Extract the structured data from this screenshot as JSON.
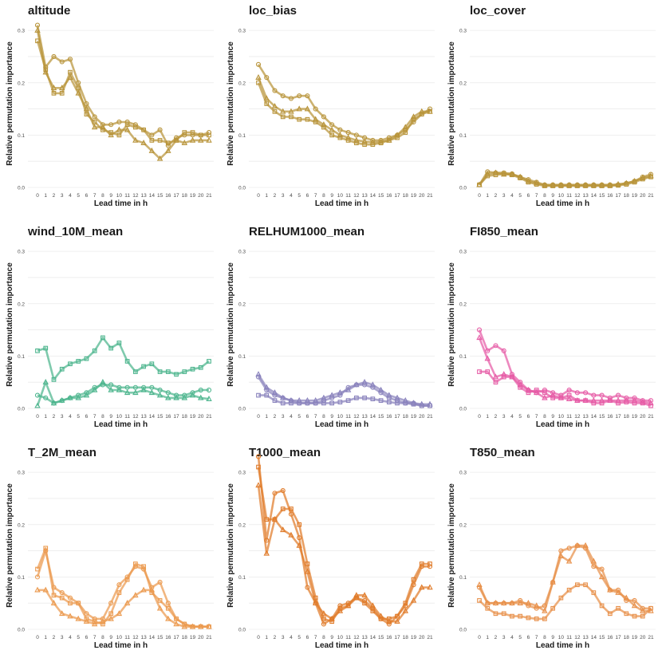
{
  "chart_data": {
    "type": "line",
    "x": [
      0,
      1,
      2,
      3,
      4,
      5,
      6,
      7,
      8,
      9,
      10,
      11,
      12,
      13,
      14,
      15,
      16,
      17,
      18,
      19,
      20,
      21
    ],
    "x_tick_labels": [
      "0",
      "1",
      "2",
      "3",
      "4",
      "5",
      "6",
      "7",
      "8",
      "9",
      "10",
      "11",
      "12",
      "13",
      "14",
      "15",
      "16",
      "17",
      "18",
      "19",
      "20",
      "21"
    ],
    "y_tick_labels": [
      "0.0",
      "0.1",
      "0.2",
      "0.3"
    ],
    "xlabel": "Lead time in h",
    "ylabel": "Relative permutation importance",
    "ylim": [
      0,
      0.32
    ],
    "grid": true,
    "series_markers": [
      "circle",
      "triangle",
      "square"
    ],
    "panels": [
      {
        "title": "altitude",
        "color": "#B8943A",
        "series": [
          {
            "marker": "circle",
            "values": [
              0.31,
              0.23,
              0.25,
              0.24,
              0.245,
              0.2,
              0.16,
              0.135,
              0.12,
              0.12,
              0.125,
              0.125,
              0.12,
              0.11,
              0.1,
              0.11,
              0.08,
              0.095,
              0.1,
              0.1,
              0.1,
              0.105
            ]
          },
          {
            "marker": "triangle",
            "values": [
              0.3,
              0.22,
              0.19,
              0.19,
              0.21,
              0.18,
              0.15,
              0.115,
              0.115,
              0.1,
              0.11,
              0.11,
              0.09,
              0.085,
              0.07,
              0.055,
              0.07,
              0.09,
              0.085,
              0.09,
              0.09,
              0.09
            ]
          },
          {
            "marker": "square",
            "values": [
              0.28,
              0.225,
              0.18,
              0.18,
              0.22,
              0.19,
              0.14,
              0.125,
              0.11,
              0.105,
              0.1,
              0.12,
              0.115,
              0.11,
              0.09,
              0.09,
              0.085,
              0.09,
              0.105,
              0.105,
              0.1,
              0.1
            ]
          }
        ]
      },
      {
        "title": "loc_bias",
        "color": "#B8943A",
        "series": [
          {
            "marker": "circle",
            "values": [
              0.235,
              0.21,
              0.185,
              0.175,
              0.17,
              0.175,
              0.175,
              0.15,
              0.135,
              0.12,
              0.11,
              0.105,
              0.1,
              0.095,
              0.09,
              0.09,
              0.095,
              0.1,
              0.11,
              0.125,
              0.14,
              0.15
            ]
          },
          {
            "marker": "triangle",
            "values": [
              0.21,
              0.17,
              0.155,
              0.145,
              0.145,
              0.15,
              0.15,
              0.13,
              0.12,
              0.11,
              0.1,
              0.095,
              0.09,
              0.088,
              0.086,
              0.087,
              0.09,
              0.1,
              0.115,
              0.135,
              0.145,
              0.145
            ]
          },
          {
            "marker": "square",
            "values": [
              0.2,
              0.16,
              0.145,
              0.135,
              0.135,
              0.13,
              0.13,
              0.125,
              0.115,
              0.1,
              0.095,
              0.09,
              0.085,
              0.082,
              0.082,
              0.085,
              0.09,
              0.095,
              0.105,
              0.13,
              0.14,
              0.145
            ]
          }
        ]
      },
      {
        "title": "loc_cover",
        "color": "#B8943A",
        "series": [
          {
            "marker": "circle",
            "values": [
              0.005,
              0.03,
              0.028,
              0.028,
              0.026,
              0.02,
              0.015,
              0.01,
              0.005,
              0.005,
              0.005,
              0.005,
              0.005,
              0.005,
              0.005,
              0.005,
              0.005,
              0.005,
              0.008,
              0.012,
              0.02,
              0.025
            ]
          },
          {
            "marker": "triangle",
            "values": [
              0.005,
              0.025,
              0.028,
              0.025,
              0.025,
              0.02,
              0.012,
              0.008,
              0.004,
              0.004,
              0.004,
              0.004,
              0.004,
              0.004,
              0.004,
              0.004,
              0.004,
              0.006,
              0.008,
              0.012,
              0.018,
              0.022
            ]
          },
          {
            "marker": "square",
            "values": [
              0.005,
              0.022,
              0.024,
              0.026,
              0.024,
              0.018,
              0.01,
              0.006,
              0.003,
              0.003,
              0.003,
              0.003,
              0.003,
              0.003,
              0.003,
              0.003,
              0.003,
              0.004,
              0.006,
              0.01,
              0.016,
              0.02
            ]
          }
        ]
      },
      {
        "title": "wind_10M_mean",
        "color": "#4DB58E",
        "series": [
          {
            "marker": "circle",
            "values": [
              0.025,
              0.02,
              0.01,
              0.015,
              0.02,
              0.025,
              0.03,
              0.04,
              0.045,
              0.045,
              0.04,
              0.04,
              0.04,
              0.04,
              0.04,
              0.035,
              0.03,
              0.025,
              0.025,
              0.03,
              0.035,
              0.035
            ]
          },
          {
            "marker": "triangle",
            "values": [
              0.005,
              0.05,
              0.01,
              0.015,
              0.02,
              0.02,
              0.025,
              0.035,
              0.05,
              0.035,
              0.035,
              0.03,
              0.03,
              0.035,
              0.03,
              0.025,
              0.02,
              0.02,
              0.02,
              0.025,
              0.02,
              0.018
            ]
          },
          {
            "marker": "square",
            "values": [
              0.11,
              0.115,
              0.055,
              0.075,
              0.085,
              0.09,
              0.095,
              0.11,
              0.135,
              0.115,
              0.125,
              0.09,
              0.07,
              0.08,
              0.085,
              0.07,
              0.07,
              0.065,
              0.07,
              0.075,
              0.078,
              0.09
            ]
          }
        ]
      },
      {
        "title": "RELHUM1000_mean",
        "color": "#8A83BD",
        "series": [
          {
            "marker": "circle",
            "values": [
              0.06,
              0.035,
              0.025,
              0.02,
              0.015,
              0.01,
              0.01,
              0.01,
              0.015,
              0.02,
              0.025,
              0.04,
              0.045,
              0.045,
              0.04,
              0.03,
              0.02,
              0.015,
              0.01,
              0.01,
              0.005,
              0.005
            ]
          },
          {
            "marker": "triangle",
            "values": [
              0.065,
              0.04,
              0.03,
              0.02,
              0.015,
              0.015,
              0.015,
              0.015,
              0.02,
              0.025,
              0.03,
              0.035,
              0.045,
              0.05,
              0.045,
              0.035,
              0.025,
              0.02,
              0.015,
              0.01,
              0.008,
              0.008
            ]
          },
          {
            "marker": "square",
            "values": [
              0.025,
              0.025,
              0.015,
              0.01,
              0.01,
              0.01,
              0.01,
              0.01,
              0.01,
              0.01,
              0.012,
              0.015,
              0.02,
              0.02,
              0.018,
              0.015,
              0.012,
              0.01,
              0.01,
              0.008,
              0.005,
              0.005
            ]
          }
        ]
      },
      {
        "title": "FI850_mean",
        "color": "#E65CA6",
        "series": [
          {
            "marker": "circle",
            "values": [
              0.15,
              0.11,
              0.12,
              0.11,
              0.065,
              0.05,
              0.035,
              0.03,
              0.035,
              0.03,
              0.025,
              0.035,
              0.03,
              0.03,
              0.025,
              0.025,
              0.02,
              0.025,
              0.02,
              0.02,
              0.015,
              0.015
            ]
          },
          {
            "marker": "triangle",
            "values": [
              0.135,
              0.095,
              0.06,
              0.065,
              0.06,
              0.045,
              0.035,
              0.03,
              0.02,
              0.025,
              0.02,
              0.018,
              0.015,
              0.015,
              0.015,
              0.015,
              0.015,
              0.015,
              0.015,
              0.015,
              0.012,
              0.01
            ]
          },
          {
            "marker": "square",
            "values": [
              0.07,
              0.07,
              0.05,
              0.06,
              0.06,
              0.04,
              0.03,
              0.035,
              0.03,
              0.02,
              0.02,
              0.025,
              0.015,
              0.015,
              0.01,
              0.01,
              0.015,
              0.01,
              0.012,
              0.01,
              0.01,
              0.005
            ]
          }
        ]
      },
      {
        "title": "T_2M_mean",
        "color": "#EB9A4F",
        "series": [
          {
            "marker": "circle",
            "values": [
              0.1,
              0.15,
              0.08,
              0.07,
              0.06,
              0.05,
              0.03,
              0.02,
              0.02,
              0.05,
              0.085,
              0.1,
              0.12,
              0.115,
              0.08,
              0.09,
              0.05,
              0.02,
              0.01,
              0.005,
              0.005,
              0.005
            ]
          },
          {
            "marker": "triangle",
            "values": [
              0.075,
              0.075,
              0.05,
              0.03,
              0.025,
              0.02,
              0.015,
              0.01,
              0.015,
              0.02,
              0.03,
              0.05,
              0.065,
              0.075,
              0.075,
              0.04,
              0.02,
              0.01,
              0.005,
              0.005,
              0.005,
              0.005
            ]
          },
          {
            "marker": "square",
            "values": [
              0.115,
              0.155,
              0.065,
              0.06,
              0.05,
              0.05,
              0.02,
              0.015,
              0.01,
              0.03,
              0.07,
              0.095,
              0.125,
              0.12,
              0.07,
              0.055,
              0.04,
              0.02,
              0.01,
              0.005,
              0.005,
              0.005
            ]
          }
        ]
      },
      {
        "title": "T1000_mean",
        "color": "#E07B2A",
        "series": [
          {
            "marker": "circle",
            "values": [
              0.33,
              0.17,
              0.26,
              0.265,
              0.22,
              0.175,
              0.08,
              0.05,
              0.01,
              0.02,
              0.045,
              0.05,
              0.06,
              0.055,
              0.04,
              0.02,
              0.01,
              0.025,
              0.045,
              0.085,
              0.12,
              0.12
            ]
          },
          {
            "marker": "triangle",
            "values": [
              0.275,
              0.145,
              0.21,
              0.19,
              0.18,
              0.16,
              0.11,
              0.05,
              0.03,
              0.02,
              0.035,
              0.045,
              0.065,
              0.065,
              0.045,
              0.025,
              0.015,
              0.015,
              0.035,
              0.055,
              0.08,
              0.08
            ]
          },
          {
            "marker": "square",
            "values": [
              0.31,
              0.21,
              0.21,
              0.23,
              0.23,
              0.2,
              0.125,
              0.06,
              0.02,
              0.015,
              0.04,
              0.045,
              0.06,
              0.05,
              0.035,
              0.02,
              0.02,
              0.025,
              0.05,
              0.095,
              0.125,
              0.125
            ]
          }
        ]
      },
      {
        "title": "T850_mean",
        "color": "#E8904A",
        "series": [
          {
            "marker": "circle",
            "values": [
              0.08,
              0.05,
              0.05,
              0.05,
              0.05,
              0.055,
              0.045,
              0.04,
              0.045,
              0.09,
              0.15,
              0.155,
              0.16,
              0.155,
              0.12,
              0.115,
              0.075,
              0.075,
              0.055,
              0.055,
              0.04,
              0.04
            ]
          },
          {
            "marker": "triangle",
            "values": [
              0.085,
              0.05,
              0.05,
              0.05,
              0.05,
              0.05,
              0.05,
              0.045,
              0.035,
              0.09,
              0.14,
              0.13,
              0.16,
              0.16,
              0.13,
              0.1,
              0.075,
              0.07,
              0.06,
              0.045,
              0.035,
              0.035
            ]
          },
          {
            "marker": "square",
            "values": [
              0.055,
              0.04,
              0.03,
              0.03,
              0.025,
              0.025,
              0.022,
              0.02,
              0.02,
              0.04,
              0.06,
              0.075,
              0.085,
              0.085,
              0.07,
              0.045,
              0.03,
              0.04,
              0.03,
              0.025,
              0.025,
              0.04
            ]
          }
        ]
      }
    ]
  }
}
